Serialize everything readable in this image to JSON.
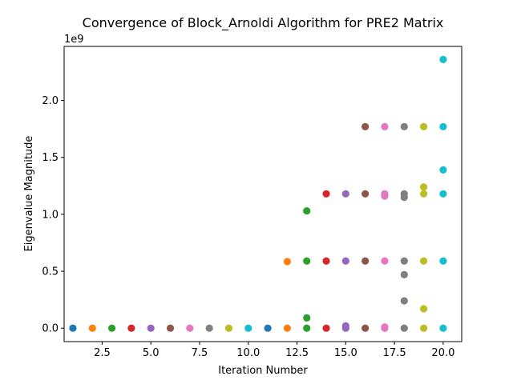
{
  "chart_data": {
    "type": "scatter",
    "title": "Convergence of Block_Arnoldi Algorithm for PRE2 Matrix",
    "xlabel": "Iteration Number",
    "ylabel": "Eigenvalue Magnitude",
    "y_offset_text": "1e9",
    "xlim": [
      0.55,
      20.95
    ],
    "ylim": [
      -0.118,
      2.475
    ],
    "x_ticks": [
      2.5,
      5.0,
      7.5,
      10.0,
      12.5,
      15.0,
      17.5,
      20.0
    ],
    "x_tick_labels": [
      "2.5",
      "5.0",
      "7.5",
      "10.0",
      "12.5",
      "15.0",
      "17.5",
      "20.0"
    ],
    "y_ticks": [
      0.0,
      0.5,
      1.0,
      1.5,
      2.0
    ],
    "y_tick_labels": [
      "0.0",
      "0.5",
      "1.0",
      "1.5",
      "2.0"
    ],
    "grid": false,
    "legend": "none",
    "series": [
      {
        "color": "#1f77b4",
        "points": [
          [
            1,
            0.0
          ]
        ]
      },
      {
        "color": "#ff7f0e",
        "points": [
          [
            2,
            0.0
          ]
        ]
      },
      {
        "color": "#2ca02c",
        "points": [
          [
            3,
            0.0
          ]
        ]
      },
      {
        "color": "#d62728",
        "points": [
          [
            4,
            0.0
          ]
        ]
      },
      {
        "color": "#9467bd",
        "points": [
          [
            5,
            0.0
          ]
        ]
      },
      {
        "color": "#8c564b",
        "points": [
          [
            6,
            0.0
          ]
        ]
      },
      {
        "color": "#e377c2",
        "points": [
          [
            7,
            0.0
          ]
        ]
      },
      {
        "color": "#7f7f7f",
        "points": [
          [
            8,
            0.0
          ]
        ]
      },
      {
        "color": "#bcbd22",
        "points": [
          [
            9,
            0.0
          ]
        ]
      },
      {
        "color": "#17becf",
        "points": [
          [
            10,
            0.0
          ]
        ]
      },
      {
        "color": "#1f77b4",
        "points": [
          [
            11,
            0.0
          ]
        ]
      },
      {
        "color": "#ff7f0e",
        "points": [
          [
            12,
            0.0
          ],
          [
            12,
            0.585
          ]
        ]
      },
      {
        "color": "#2ca02c",
        "points": [
          [
            13,
            0.0
          ],
          [
            13,
            0.09
          ],
          [
            13,
            0.59
          ],
          [
            13,
            1.03
          ]
        ]
      },
      {
        "color": "#d62728",
        "points": [
          [
            14,
            0.0
          ],
          [
            14,
            0.59
          ],
          [
            14,
            1.18
          ]
        ]
      },
      {
        "color": "#9467bd",
        "points": [
          [
            15,
            0.0
          ],
          [
            15,
            0.02
          ],
          [
            15,
            0.59
          ],
          [
            15,
            1.18
          ]
        ]
      },
      {
        "color": "#8c564b",
        "points": [
          [
            16,
            0.0
          ],
          [
            16,
            0.59
          ],
          [
            16,
            1.18
          ],
          [
            16,
            1.77
          ]
        ]
      },
      {
        "color": "#e377c2",
        "points": [
          [
            17,
            0.0
          ],
          [
            17,
            0.01
          ],
          [
            17,
            0.59
          ],
          [
            17,
            1.16
          ],
          [
            17,
            1.18
          ],
          [
            17,
            1.77
          ]
        ]
      },
      {
        "color": "#7f7f7f",
        "points": [
          [
            18,
            0.0
          ],
          [
            18,
            0.24
          ],
          [
            18,
            0.47
          ],
          [
            18,
            0.59
          ],
          [
            18,
            1.15
          ],
          [
            18,
            1.18
          ],
          [
            18,
            1.77
          ]
        ]
      },
      {
        "color": "#bcbd22",
        "points": [
          [
            19,
            0.0
          ],
          [
            19,
            0.17
          ],
          [
            19,
            0.59
          ],
          [
            19,
            1.18
          ],
          [
            19,
            1.24
          ],
          [
            19,
            1.77
          ]
        ]
      },
      {
        "color": "#17becf",
        "points": [
          [
            20,
            0.0
          ],
          [
            20,
            0.59
          ],
          [
            20,
            1.18
          ],
          [
            20,
            1.39
          ],
          [
            20,
            1.77
          ],
          [
            20,
            2.36
          ]
        ]
      }
    ]
  }
}
